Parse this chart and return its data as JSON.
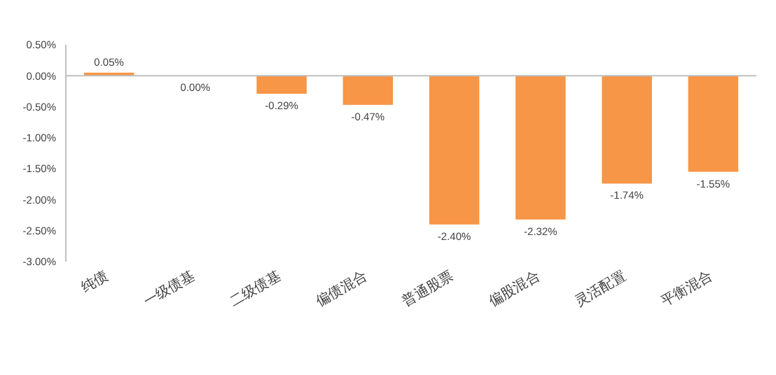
{
  "chart_data": {
    "type": "bar",
    "categories": [
      "纯债",
      "一级债基",
      "二级债基",
      "偏债混合",
      "普通股票",
      "偏股混合",
      "灵活配置",
      "平衡混合"
    ],
    "values": [
      0.05,
      0,
      -0.29,
      -0.47,
      -2.4,
      -2.32,
      -1.74,
      -1.55
    ],
    "value_labels": [
      "0.05%",
      "0.00%",
      "-0.29%",
      "-0.47%",
      "-2.40%",
      "-2.32%",
      "-1.74%",
      "-1.55%"
    ],
    "color": "#f79646",
    "ylim": [
      -3,
      0.5
    ],
    "yticks": [
      {
        "value": 0.5,
        "label": "0.50%"
      },
      {
        "value": 0,
        "label": "0.00%"
      },
      {
        "value": -0.5,
        "label": "-0.50%"
      },
      {
        "value": -1,
        "label": "-1.00%"
      },
      {
        "value": -1.5,
        "label": "-1.50%"
      },
      {
        "value": -2,
        "label": "-2.00%"
      },
      {
        "value": -2.5,
        "label": "-2.50%"
      },
      {
        "value": -3,
        "label": "-3.00%"
      }
    ]
  }
}
